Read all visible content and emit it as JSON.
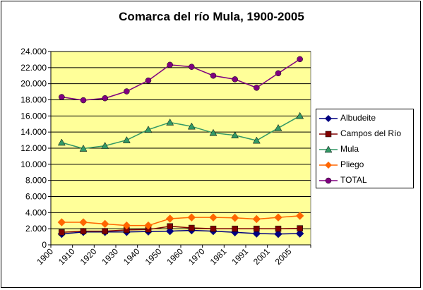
{
  "chart_data": {
    "type": "line",
    "title": "Comarca del río Mula, 1900-2005",
    "xlabel": "",
    "ylabel": "",
    "categories": [
      "1900",
      "1910",
      "1920",
      "1930",
      "1940",
      "1950",
      "1960",
      "1970",
      "1981",
      "1991",
      "2001",
      "2005"
    ],
    "ylim": [
      0,
      24000
    ],
    "y_ticks": [
      "0",
      "2.000",
      "4.000",
      "6.000",
      "8.000",
      "10.000",
      "12.000",
      "14.000",
      "16.000",
      "18.000",
      "20.000",
      "22.000",
      "24.000"
    ],
    "grid": true,
    "legend_position": "right",
    "plot_background": "#ffff99",
    "series": [
      {
        "name": "Albudeite",
        "color": "#000080",
        "marker": "diamond",
        "values": [
          1350,
          1600,
          1600,
          1600,
          1650,
          1700,
          1800,
          1700,
          1550,
          1400,
          1350,
          1400
        ]
      },
      {
        "name": "Campos del Río",
        "color": "#800000",
        "marker": "square",
        "values": [
          1550,
          1700,
          1700,
          1850,
          1900,
          2300,
          2100,
          2000,
          2000,
          2000,
          2000,
          2050
        ]
      },
      {
        "name": "Mula",
        "color": "#339966",
        "marker": "triangle",
        "values": [
          12700,
          11950,
          12300,
          13000,
          14300,
          15200,
          14700,
          13900,
          13600,
          12950,
          14500,
          16000
        ]
      },
      {
        "name": "Pliego",
        "color": "#ff6600",
        "marker": "diamond",
        "values": [
          2800,
          2800,
          2600,
          2400,
          2400,
          3250,
          3400,
          3400,
          3350,
          3200,
          3400,
          3600
        ]
      },
      {
        "name": "TOTAL",
        "color": "#800080",
        "marker": "circle",
        "values": [
          18350,
          17950,
          18200,
          19050,
          20400,
          22350,
          22100,
          21000,
          20550,
          19500,
          21300,
          23050
        ]
      }
    ]
  }
}
